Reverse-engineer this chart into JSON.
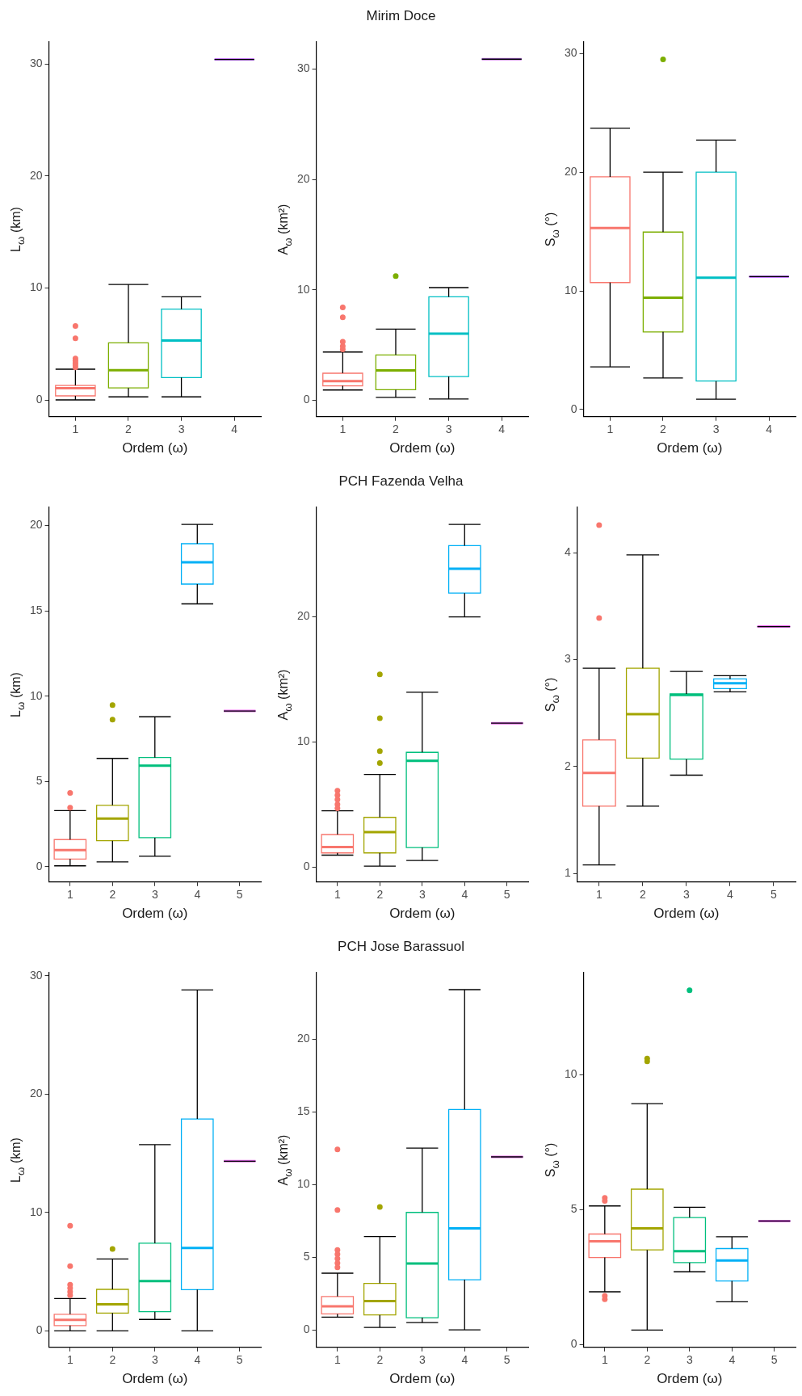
{
  "chart_data": [
    {
      "type": "box",
      "xlabel": "Ordem (ω)",
      "ylabel": "L$_{ω}$ (km)",
      "categories": [
        "1",
        "2",
        "3",
        "4"
      ],
      "colors": [
        "#f8766d",
        "#7cae00",
        "#00bfc4",
        "#c77cff"
      ],
      "ylim": [
        -1.5,
        32
      ],
      "yticks": [
        0,
        10,
        20,
        30
      ],
      "grid": false,
      "boxes": [
        {
          "low": 0,
          "q1": 0.36,
          "median": 1.04,
          "q3": 1.29,
          "high": 2.74,
          "outliers": [
            6.6,
            5.5,
            3.7,
            3.5,
            3.3,
            3.1,
            2.9
          ]
        },
        {
          "low": 0.27,
          "q1": 1.07,
          "median": 2.66,
          "q3": 5.1,
          "high": 10.3
        },
        {
          "low": 0.27,
          "q1": 2.0,
          "median": 5.3,
          "q3": 8.1,
          "high": 9.2
        },
        {
          "low": 30.4,
          "q1": 30.4,
          "median": 30.4,
          "q3": 30.4,
          "high": 30.4
        }
      ]
    },
    {
      "type": "box",
      "title": "Mirim Doce",
      "xlabel": "Ordem (ω)",
      "ylabel": "A$_{ω}$ (km²)",
      "categories": [
        "1",
        "2",
        "3",
        "4"
      ],
      "colors": [
        "#f8766d",
        "#7cae00",
        "#00bfc4",
        "#c77cff"
      ],
      "ylim": [
        -1.5,
        32.5
      ],
      "yticks": [
        0,
        10,
        20,
        30
      ],
      "grid": false,
      "boxes": [
        {
          "low": 0.92,
          "q1": 1.3,
          "median": 1.72,
          "q3": 2.44,
          "high": 4.36,
          "outliers": [
            8.4,
            7.5,
            5.3,
            4.9,
            4.6
          ]
        },
        {
          "low": 0.25,
          "q1": 0.94,
          "median": 2.7,
          "q3": 4.1,
          "high": 6.44,
          "outliers": [
            11.25
          ]
        },
        {
          "low": 0.1,
          "q1": 2.14,
          "median": 6.03,
          "q3": 9.36,
          "high": 10.2
        },
        {
          "low": 30.9,
          "q1": 30.9,
          "median": 30.9,
          "q3": 30.9,
          "high": 30.9
        }
      ]
    },
    {
      "type": "box",
      "xlabel": "Ordem (ω)",
      "ylabel": "S$_{ω}$ (°)",
      "categories": [
        "1",
        "2",
        "3",
        "4"
      ],
      "colors": [
        "#f8766d",
        "#7cae00",
        "#00bfc4",
        "#c77cff"
      ],
      "ylim": [
        -0.6,
        31
      ],
      "yticks": [
        0,
        10,
        20,
        30
      ],
      "grid": false,
      "boxes": [
        {
          "low": 3.6,
          "q1": 10.7,
          "median": 15.3,
          "q3": 19.6,
          "high": 23.7
        },
        {
          "low": 2.66,
          "q1": 6.54,
          "median": 9.43,
          "q3": 14.95,
          "high": 20.0,
          "outliers": [
            29.5
          ]
        },
        {
          "low": 0.88,
          "q1": 2.4,
          "median": 11.1,
          "q3": 20.0,
          "high": 22.7
        },
        {
          "low": 11.2,
          "q1": 11.2,
          "median": 11.2,
          "q3": 11.2,
          "high": 11.2
        }
      ]
    },
    {
      "type": "box",
      "xlabel": "Ordem (ω)",
      "ylabel": "L$_{ω}$ (km)",
      "categories": [
        "1",
        "2",
        "3",
        "4",
        "5"
      ],
      "colors": [
        "#f8766d",
        "#a3a500",
        "#00bf7d",
        "#00b0f6",
        "#e76bf3"
      ],
      "ylim": [
        -0.9,
        21.1
      ],
      "yticks": [
        0,
        5,
        10,
        15,
        20
      ],
      "grid": false,
      "boxes": [
        {
          "low": 0.05,
          "q1": 0.45,
          "median": 0.97,
          "q3": 1.59,
          "high": 3.29,
          "outliers": [
            4.33,
            3.46
          ]
        },
        {
          "low": 0.28,
          "q1": 1.52,
          "median": 2.82,
          "q3": 3.6,
          "high": 6.35,
          "outliers": [
            9.48,
            8.62
          ]
        },
        {
          "low": 0.61,
          "q1": 1.7,
          "median": 5.93,
          "q3": 6.4,
          "high": 8.79
        },
        {
          "low": 15.41,
          "q1": 16.57,
          "median": 17.85,
          "q3": 18.94,
          "high": 20.07
        },
        {
          "low": 9.13,
          "q1": 9.13,
          "median": 9.13,
          "q3": 9.13,
          "high": 9.13
        }
      ]
    },
    {
      "type": "box",
      "title": "PCH Fazenda Velha",
      "xlabel": "Ordem (ω)",
      "ylabel": "A$_{ω}$ (km²)",
      "categories": [
        "1",
        "2",
        "3",
        "4",
        "5"
      ],
      "colors": [
        "#f8766d",
        "#a3a500",
        "#00bf7d",
        "#00b0f6",
        "#e76bf3"
      ],
      "ylim": [
        -1.2,
        28.8
      ],
      "yticks": [
        0,
        10,
        20
      ],
      "grid": false,
      "boxes": [
        {
          "low": 0.95,
          "q1": 1.13,
          "median": 1.6,
          "q3": 2.6,
          "high": 4.49,
          "outliers": [
            6.1,
            5.74,
            5.4,
            5.0,
            4.7
          ]
        },
        {
          "low": 0.07,
          "q1": 1.13,
          "median": 2.79,
          "q3": 3.97,
          "high": 7.4,
          "outliers": [
            15.4,
            11.9,
            9.27,
            8.32
          ]
        },
        {
          "low": 0.52,
          "q1": 1.56,
          "median": 8.5,
          "q3": 9.17,
          "high": 13.97
        },
        {
          "low": 20.0,
          "q1": 21.9,
          "median": 23.85,
          "q3": 25.7,
          "high": 27.4
        },
        {
          "low": 11.5,
          "q1": 11.5,
          "median": 11.5,
          "q3": 11.5,
          "high": 11.5
        }
      ]
    },
    {
      "type": "box",
      "xlabel": "Ordem (ω)",
      "ylabel": "S$_{ω}$ (°)",
      "categories": [
        "1",
        "2",
        "3",
        "4",
        "5"
      ],
      "colors": [
        "#f8766d",
        "#a3a500",
        "#00bf7d",
        "#00b0f6",
        "#e76bf3"
      ],
      "ylim": [
        0.92,
        4.43
      ],
      "yticks": [
        1,
        2,
        3,
        4
      ],
      "grid": false,
      "boxes": [
        {
          "low": 1.08,
          "q1": 1.63,
          "median": 1.94,
          "q3": 2.25,
          "high": 2.92,
          "outliers": [
            4.26,
            3.39
          ]
        },
        {
          "low": 1.63,
          "q1": 2.08,
          "median": 2.49,
          "q3": 2.92,
          "high": 3.98
        },
        {
          "low": 1.92,
          "q1": 2.07,
          "median": 2.67,
          "q3": 2.68,
          "high": 2.89
        },
        {
          "low": 2.7,
          "q1": 2.73,
          "median": 2.78,
          "q3": 2.82,
          "high": 2.85
        },
        {
          "low": 3.31,
          "q1": 3.31,
          "median": 3.31,
          "q3": 3.31,
          "high": 3.31
        }
      ]
    },
    {
      "type": "box",
      "xlabel": "Ordem (ω)",
      "ylabel": "L$_{ω}$ (km)",
      "categories": [
        "1",
        "2",
        "3",
        "4",
        "5"
      ],
      "colors": [
        "#f8766d",
        "#a3a500",
        "#00bf7d",
        "#00b0f6",
        "#e76bf3"
      ],
      "ylim": [
        -1.4,
        30.3
      ],
      "yticks": [
        0,
        10,
        20,
        30
      ],
      "grid": false,
      "boxes": [
        {
          "low": 0,
          "q1": 0.44,
          "median": 0.93,
          "q3": 1.4,
          "high": 2.72,
          "outliers": [
            8.87,
            5.47,
            3.9,
            3.6,
            3.3,
            3.0
          ]
        },
        {
          "low": 0,
          "q1": 1.5,
          "median": 2.23,
          "q3": 3.5,
          "high": 6.07,
          "outliers": [
            6.92
          ]
        },
        {
          "low": 0.96,
          "q1": 1.61,
          "median": 4.2,
          "q3": 7.4,
          "high": 15.73
        },
        {
          "low": 0,
          "q1": 3.48,
          "median": 7.0,
          "q3": 17.9,
          "high": 28.8
        },
        {
          "low": 14.33,
          "q1": 14.33,
          "median": 14.33,
          "q3": 14.33,
          "high": 14.33
        }
      ]
    },
    {
      "type": "box",
      "title": "PCH Jose Barassuol",
      "xlabel": "Ordem (ω)",
      "ylabel": "A$_{ω}$ (km²)",
      "categories": [
        "1",
        "2",
        "3",
        "4",
        "5"
      ],
      "colors": [
        "#f8766d",
        "#a3a500",
        "#00bf7d",
        "#00b0f6",
        "#e76bf3"
      ],
      "ylim": [
        -1.2,
        24.6
      ],
      "yticks": [
        0,
        5,
        10,
        15,
        20
      ],
      "grid": false,
      "boxes": [
        {
          "low": 0.88,
          "q1": 1.1,
          "median": 1.62,
          "q3": 2.3,
          "high": 3.9,
          "outliers": [
            12.42,
            8.25,
            5.5,
            5.2,
            4.9,
            4.6,
            4.3
          ]
        },
        {
          "low": 0.17,
          "q1": 1.03,
          "median": 1.98,
          "q3": 3.2,
          "high": 6.42,
          "outliers": [
            8.46
          ]
        },
        {
          "low": 0.5,
          "q1": 0.84,
          "median": 4.57,
          "q3": 8.08,
          "high": 12.5
        },
        {
          "low": 0,
          "q1": 3.45,
          "median": 6.99,
          "q3": 15.16,
          "high": 23.4
        },
        {
          "low": 11.9,
          "q1": 11.9,
          "median": 11.9,
          "q3": 11.9,
          "high": 11.9
        }
      ]
    },
    {
      "type": "box",
      "xlabel": "Ordem (ω)",
      "ylabel": "S$_{ω}$ (°)",
      "categories": [
        "1",
        "2",
        "3",
        "4",
        "5"
      ],
      "colors": [
        "#f8766d",
        "#a3a500",
        "#00bf7d",
        "#00b0f6",
        "#e76bf3"
      ],
      "ylim": [
        -0.1,
        13.8
      ],
      "yticks": [
        0,
        5,
        10
      ],
      "grid": false,
      "boxes": [
        {
          "low": 1.96,
          "q1": 3.23,
          "median": 3.83,
          "q3": 4.1,
          "high": 5.14,
          "outliers": [
            5.44,
            5.33,
            1.81,
            1.68
          ]
        },
        {
          "low": 0.54,
          "q1": 3.51,
          "median": 4.31,
          "q3": 5.76,
          "high": 8.93,
          "outliers": [
            10.6,
            10.5
          ]
        },
        {
          "low": 2.7,
          "q1": 3.04,
          "median": 3.46,
          "q3": 4.71,
          "high": 5.09,
          "outliers": [
            13.13
          ]
        },
        {
          "low": 1.59,
          "q1": 2.36,
          "median": 3.12,
          "q3": 3.56,
          "high": 4.0
        },
        {
          "low": 4.58,
          "q1": 4.58,
          "median": 4.58,
          "q3": 4.58,
          "high": 4.58
        }
      ]
    }
  ]
}
